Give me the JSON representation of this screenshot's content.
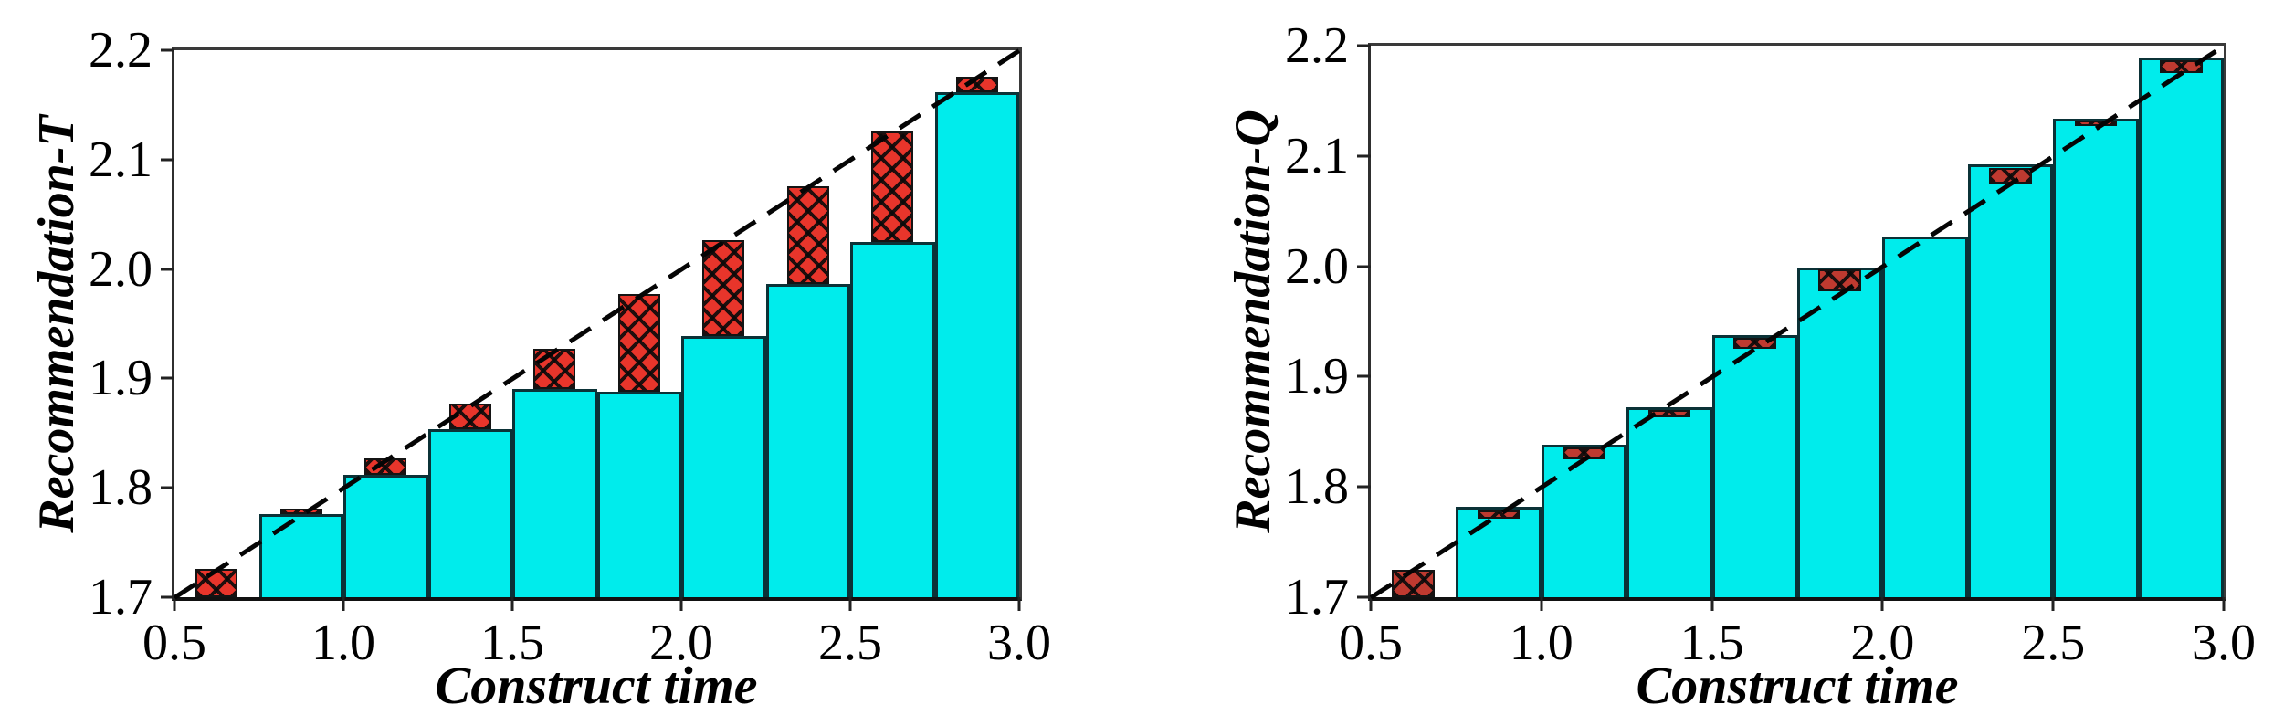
{
  "chart_data": [
    {
      "type": "bar",
      "title": "",
      "xlabel": "Construct time",
      "ylabel": "Recommendation-T",
      "xlim": [
        0.5,
        3.0
      ],
      "ylim": [
        1.7,
        2.2
      ],
      "x_ticks": [
        0.5,
        1.0,
        1.5,
        2.0,
        2.5,
        3.0
      ],
      "y_ticks": [
        1.7,
        1.8,
        1.9,
        2.0,
        2.1,
        2.2
      ],
      "grid": false,
      "legend": "none",
      "bar_width": 0.25,
      "red_width": 0.125,
      "x": [
        0.625,
        0.875,
        1.125,
        1.375,
        1.625,
        1.875,
        2.125,
        2.375,
        2.625,
        2.875
      ],
      "series": [
        {
          "name": "cyan-bars",
          "color": "#00ecec",
          "values": [
            1.7,
            1.776,
            1.812,
            1.854,
            1.89,
            1.888,
            1.939,
            1.986,
            2.025,
            2.162
          ]
        },
        {
          "name": "red-hatched-segments",
          "color": "#e8352b",
          "placement": "stacked-on-top",
          "segments": [
            [
              1.7,
              1.726
            ],
            [
              1.776,
              1.781
            ],
            [
              1.812,
              1.827
            ],
            [
              1.854,
              1.877
            ],
            [
              1.89,
              1.927
            ],
            [
              1.888,
              1.977
            ],
            [
              1.939,
              2.026
            ],
            [
              1.986,
              2.076
            ],
            [
              2.025,
              2.126
            ],
            [
              2.162,
              2.176
            ]
          ]
        }
      ],
      "reference_line": {
        "style": "dashed",
        "color": "#000000",
        "from": [
          0.5,
          1.7
        ],
        "to": [
          3.0,
          2.2
        ]
      }
    },
    {
      "type": "bar",
      "title": "",
      "xlabel": "Construct time",
      "ylabel": "Recommendation-Q",
      "xlim": [
        0.5,
        3.0
      ],
      "ylim": [
        1.7,
        2.2
      ],
      "x_ticks": [
        0.5,
        1.0,
        1.5,
        2.0,
        2.5,
        3.0
      ],
      "y_ticks": [
        1.7,
        1.8,
        1.9,
        2.0,
        2.1,
        2.2
      ],
      "grid": false,
      "legend": "none",
      "bar_width": 0.25,
      "red_width": 0.125,
      "x": [
        0.625,
        0.875,
        1.125,
        1.375,
        1.625,
        1.875,
        2.125,
        2.375,
        2.625,
        2.875
      ],
      "series": [
        {
          "name": "cyan-bars",
          "color": "#00ecec",
          "values": [
            1.7,
            1.782,
            1.838,
            1.872,
            1.938,
            1.999,
            2.027,
            2.092,
            2.134,
            2.189
          ]
        },
        {
          "name": "red-hatched-segments",
          "color": "#bf3a30",
          "placement": "inset-at-top",
          "segments": [
            [
              1.7,
              1.725
            ],
            [
              1.771,
              1.779
            ],
            [
              1.825,
              1.836
            ],
            [
              1.863,
              1.87
            ],
            [
              1.925,
              1.935
            ],
            [
              1.977,
              1.997
            ],
            null,
            [
              2.075,
              2.089
            ],
            [
              2.127,
              2.132
            ],
            [
              2.175,
              2.187
            ]
          ]
        }
      ],
      "reference_line": {
        "style": "dashed",
        "color": "#000000",
        "from": [
          0.5,
          1.7
        ],
        "to": [
          3.0,
          2.2
        ]
      }
    }
  ]
}
